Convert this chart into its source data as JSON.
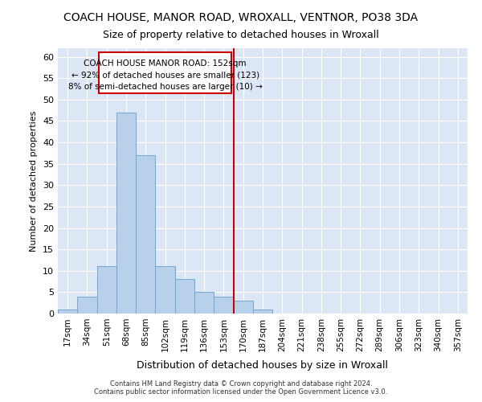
{
  "title": "COACH HOUSE, MANOR ROAD, WROXALL, VENTNOR, PO38 3DA",
  "subtitle": "Size of property relative to detached houses in Wroxall",
  "xlabel": "Distribution of detached houses by size in Wroxall",
  "ylabel": "Number of detached properties",
  "bar_labels": [
    "17sqm",
    "34sqm",
    "51sqm",
    "68sqm",
    "85sqm",
    "102sqm",
    "119sqm",
    "136sqm",
    "153sqm",
    "170sqm",
    "187sqm",
    "204sqm",
    "221sqm",
    "238sqm",
    "255sqm",
    "272sqm",
    "289sqm",
    "306sqm",
    "323sqm",
    "340sqm",
    "357sqm"
  ],
  "bar_values": [
    1,
    4,
    11,
    47,
    37,
    11,
    8,
    5,
    4,
    3,
    1,
    0,
    0,
    0,
    0,
    0,
    0,
    0,
    0,
    0,
    0
  ],
  "bar_color": "#b8d0ea",
  "bar_edgecolor": "#6ea8d8",
  "background_color": "#dce6f5",
  "grid_color": "#ffffff",
  "vline_x_index": 8,
  "vline_color": "#cc0000",
  "annotation_line1": "COACH HOUSE MANOR ROAD: 152sqm",
  "annotation_line2": "← 92% of detached houses are smaller (123)",
  "annotation_line3": "8% of semi-detached houses are larger (10) →",
  "annotation_box_color": "#cc0000",
  "ylim": [
    0,
    62
  ],
  "yticks": [
    0,
    5,
    10,
    15,
    20,
    25,
    30,
    35,
    40,
    45,
    50,
    55,
    60
  ],
  "footer1": "Contains HM Land Registry data © Crown copyright and database right 2024.",
  "footer2": "Contains public sector information licensed under the Open Government Licence v3.0.",
  "fig_bg": "#ffffff"
}
